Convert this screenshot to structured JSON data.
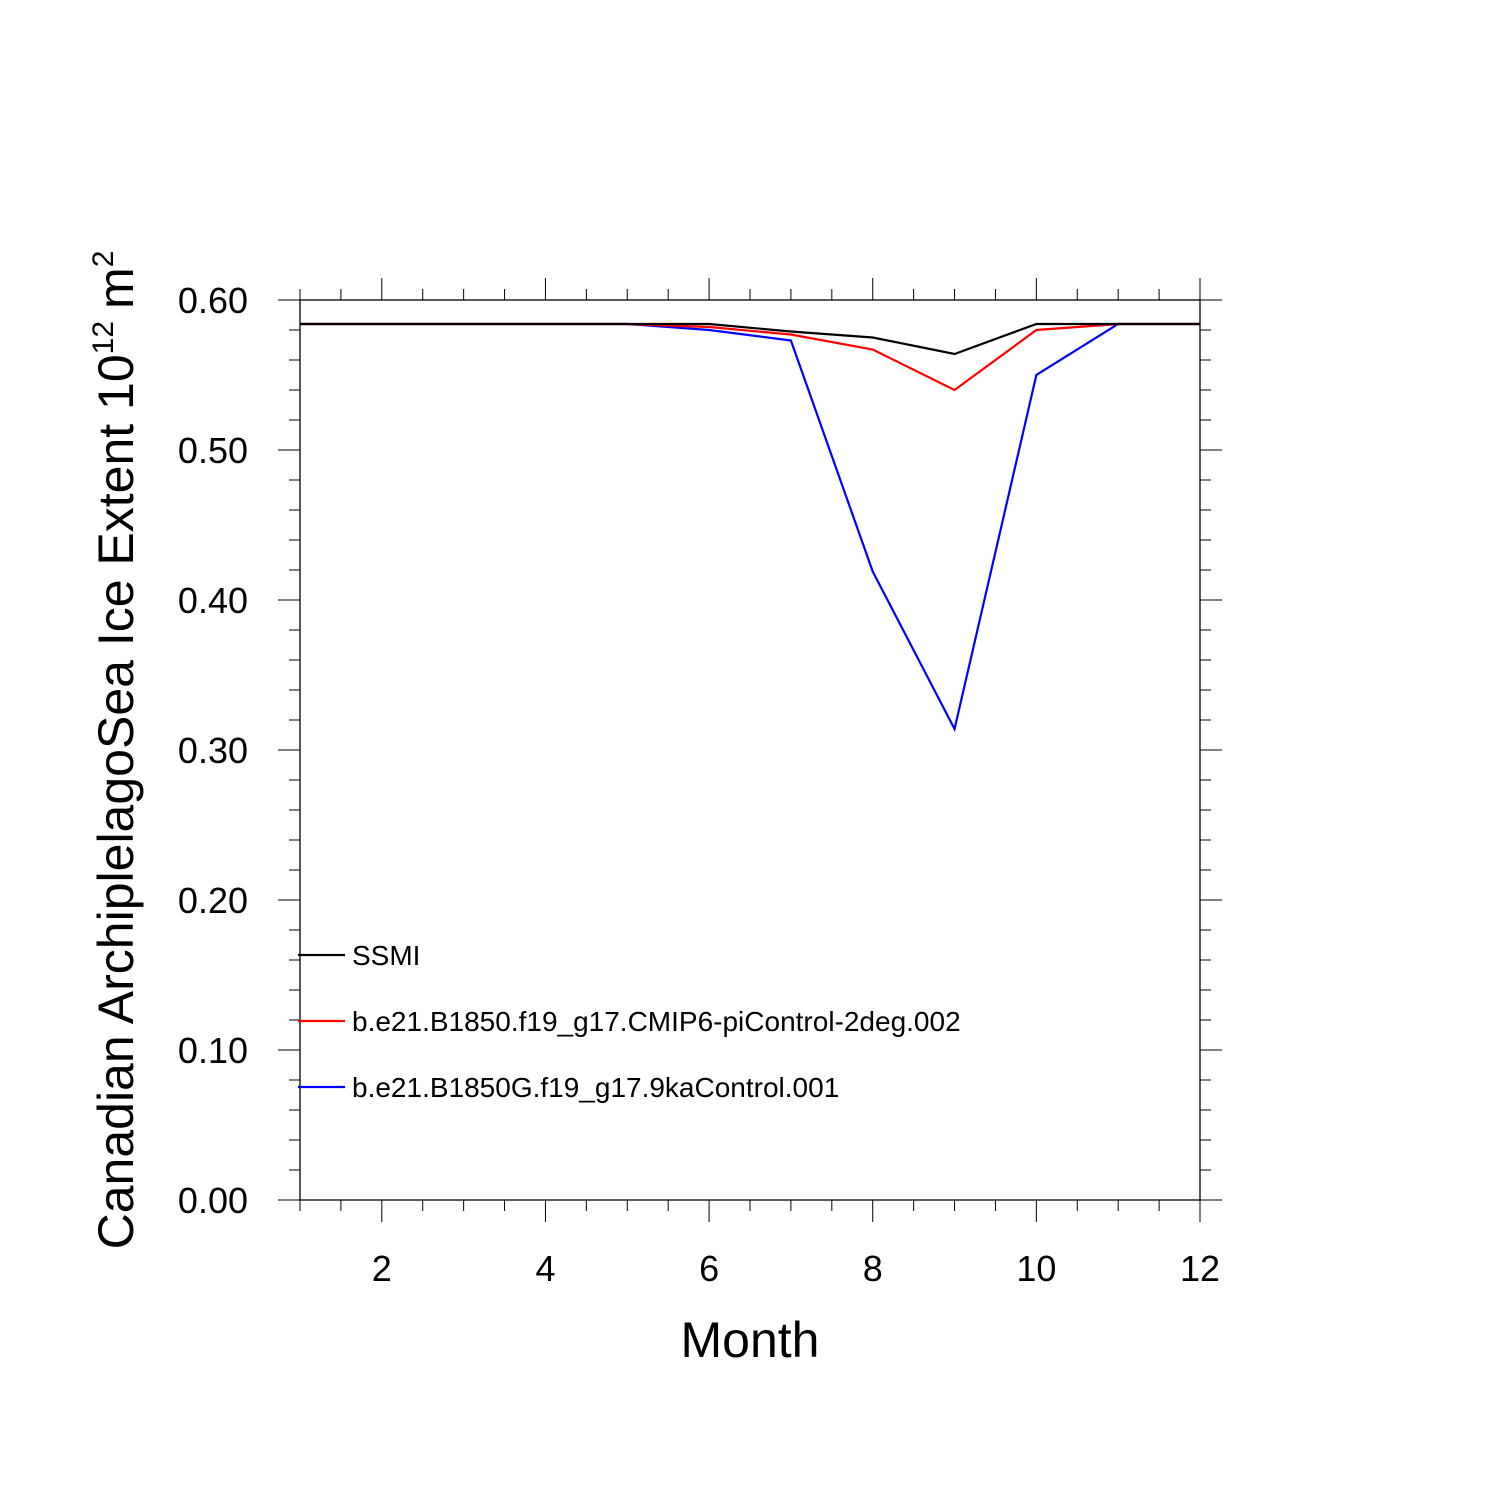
{
  "chart_data": {
    "type": "line",
    "title": "",
    "xlabel": "Month",
    "ylabel": "Canadian ArchiplelagoSea Ice Extent 10",
    "ylabel_sup": "12",
    "ylabel_unit": "m",
    "ylabel_unit_sup": "2",
    "xlim": [
      1,
      12
    ],
    "ylim": [
      0,
      0.6
    ],
    "x_ticks": [
      2,
      4,
      6,
      8,
      10,
      12
    ],
    "y_ticks": [
      "0.00",
      "0.10",
      "0.20",
      "0.30",
      "0.40",
      "0.50",
      "0.60"
    ],
    "legend_position": "lower-left",
    "grid": false,
    "x": [
      1,
      2,
      3,
      4,
      5,
      6,
      7,
      8,
      9,
      10,
      11,
      12
    ],
    "series": [
      {
        "name": "SSMI",
        "color": "#000000",
        "values": [
          0.584,
          0.584,
          0.584,
          0.584,
          0.584,
          0.584,
          0.579,
          0.575,
          0.564,
          0.584,
          0.584,
          0.584
        ]
      },
      {
        "name": "b.e21.B1850.f19_g17.CMIP6-piControl-2deg.002",
        "color": "#ff0000",
        "values": [
          0.584,
          0.584,
          0.584,
          0.584,
          0.584,
          0.582,
          0.577,
          0.567,
          0.54,
          0.58,
          0.584,
          0.584
        ]
      },
      {
        "name": "b.e21.B1850G.f19_g17.9kaControl.001",
        "color": "#0000ff",
        "values": [
          0.584,
          0.584,
          0.584,
          0.584,
          0.584,
          0.58,
          0.573,
          0.419,
          0.314,
          0.55,
          0.584,
          0.584
        ]
      }
    ]
  }
}
